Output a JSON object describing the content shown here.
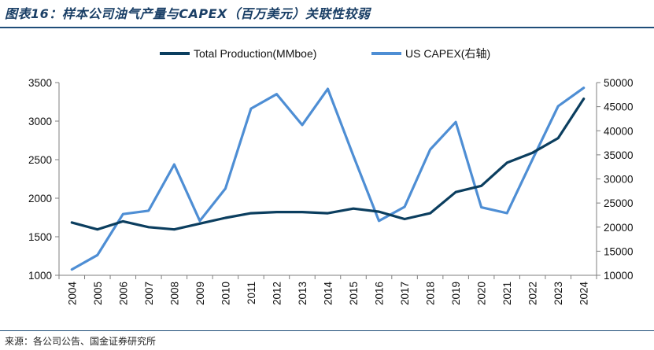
{
  "header": {
    "title": "图表16：样本公司油气产量与CAPEX（百万美元）关联性较弱"
  },
  "footer": {
    "source": "来源：各公司公告、国金证券研究所"
  },
  "colors": {
    "production": "#0b3e5f",
    "capex": "#4e8ed4",
    "rule": "#1f4e79"
  },
  "chart_data": {
    "type": "line",
    "title": "",
    "x": [
      "2004",
      "2005",
      "2006",
      "2007",
      "2008",
      "2009",
      "2010",
      "2011",
      "2012",
      "2013",
      "2014",
      "2015",
      "2016",
      "2017",
      "2018",
      "2019",
      "2020",
      "2021",
      "2022",
      "2023",
      "2024"
    ],
    "series": [
      {
        "name": "Total Production(MMboe)",
        "axis": "left",
        "values": [
          1685,
          1595,
          1700,
          1625,
          1595,
          1670,
          1745,
          1805,
          1820,
          1820,
          1805,
          1865,
          1825,
          1730,
          1805,
          2080,
          2160,
          2460,
          2590,
          2780,
          3290
        ]
      },
      {
        "name": "US CAPEX(右轴)",
        "axis": "right",
        "values": [
          11200,
          14200,
          22700,
          23400,
          33000,
          21300,
          28000,
          44600,
          47600,
          41200,
          48700,
          34800,
          21300,
          24200,
          36100,
          41800,
          24100,
          22900,
          34100,
          45100,
          48900
        ]
      }
    ],
    "y_left": {
      "min": 1000,
      "max": 3500,
      "ticks": [
        1000,
        1500,
        2000,
        2500,
        3000,
        3500
      ]
    },
    "y_right": {
      "min": 10000,
      "max": 50000,
      "ticks": [
        10000,
        15000,
        20000,
        25000,
        30000,
        35000,
        40000,
        45000,
        50000
      ]
    },
    "legend": {
      "position": "top-center",
      "entries": [
        "Total Production(MMboe)",
        "US CAPEX(右轴)"
      ]
    },
    "grid": false
  }
}
